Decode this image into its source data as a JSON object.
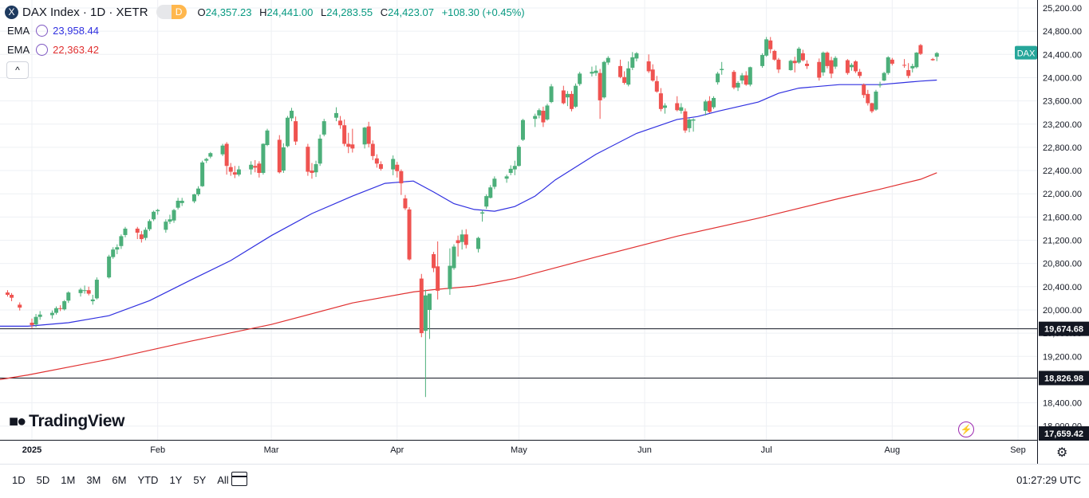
{
  "header": {
    "logo_letter": "X",
    "symbol_title": "DAX Index · 1D · XETR",
    "pill_left": "",
    "pill_right": "D",
    "o_label": "O",
    "o_value": "24,357.23",
    "h_label": "H",
    "h_value": "24,441.00",
    "l_label": "L",
    "l_value": "24,283.55",
    "c_label": "C",
    "c_value": "24,423.07",
    "change": "+108.30 (+0.45%)"
  },
  "ema1": {
    "label": "EMA",
    "value": "23,958.44",
    "color": "#3030e0"
  },
  "ema2": {
    "label": "EMA",
    "value": "22,363.42",
    "color": "#e03030"
  },
  "collapse_label": "^",
  "logo_text": "TradingView",
  "colors": {
    "up": "#26a69a",
    "upFill": "#4caf50",
    "down": "#ef5350",
    "grid": "#eef0f4",
    "axis": "#e0e3eb"
  },
  "chart_data": {
    "type": "candlestick",
    "title": "DAX Index · 1D · XETR",
    "price_axis": {
      "min": 17659.42,
      "max": 25200,
      "ticks": [
        25200,
        24800,
        24400,
        24000,
        23600,
        23200,
        22800,
        22400,
        22000,
        21600,
        21200,
        20800,
        20400,
        20000,
        19600,
        19200,
        18800,
        18400,
        18000
      ],
      "tick_labels": [
        "25,200.00",
        "24,800.00",
        "24,400.00",
        "24,000.00",
        "23,600.00",
        "23,200.00",
        "22,800.00",
        "22,400.00",
        "22,000.00",
        "21,600.00",
        "21,200.00",
        "20,800.00",
        "20,400.00",
        "20,000.00",
        "19,600.00",
        "19,200.00",
        "18,800.00",
        "18,400.00",
        "18,000.00"
      ]
    },
    "time_axis": {
      "labels": [
        "2025",
        "Feb",
        "Mar",
        "Apr",
        "May",
        "Jun",
        "Jul",
        "Aug",
        "Sep"
      ],
      "label_days": [
        1,
        32,
        60,
        91,
        121,
        152,
        182,
        213,
        244
      ]
    },
    "hlines": [
      {
        "value": 19674.68,
        "label": "19,674.68"
      },
      {
        "value": 18826.98,
        "label": "18,826.98"
      }
    ],
    "bottom_label": "17,659.42",
    "last_price_badge": "DAX",
    "candles_note": "day index (1 = Jan 1, 2025) with open, high, low, close",
    "candles": [
      [
        -5,
        20300,
        20340,
        20230,
        20260
      ],
      [
        -4,
        20260,
        20290,
        20150,
        20210
      ],
      [
        -2,
        20090,
        20130,
        19990,
        20040
      ],
      [
        1,
        19780,
        19850,
        19680,
        19740
      ],
      [
        2,
        19750,
        19930,
        19700,
        19880
      ],
      [
        3,
        19880,
        19980,
        19830,
        19920
      ],
      [
        6,
        19910,
        19990,
        19850,
        19950
      ],
      [
        7,
        19950,
        20060,
        19920,
        20030
      ],
      [
        8,
        20030,
        20080,
        19980,
        20020
      ],
      [
        9,
        20010,
        20170,
        19990,
        20150
      ],
      [
        10,
        20160,
        20320,
        20120,
        20300
      ],
      [
        13,
        20290,
        20380,
        20230,
        20350
      ],
      [
        14,
        20330,
        20420,
        20280,
        20340
      ],
      [
        15,
        20340,
        20400,
        20250,
        20280
      ],
      [
        16,
        20150,
        20260,
        20090,
        20180
      ],
      [
        17,
        20200,
        20560,
        20180,
        20520
      ],
      [
        20,
        20560,
        20950,
        20540,
        20920
      ],
      [
        21,
        20910,
        21080,
        20880,
        21040
      ],
      [
        22,
        21040,
        21130,
        20960,
        21080
      ],
      [
        23,
        21100,
        21300,
        21050,
        21270
      ],
      [
        24,
        21290,
        21430,
        21250,
        21400
      ],
      [
        27,
        21400,
        21430,
        21220,
        21330
      ],
      [
        28,
        21300,
        21360,
        21160,
        21220
      ],
      [
        29,
        21240,
        21420,
        21200,
        21380
      ],
      [
        30,
        21390,
        21560,
        21360,
        21530
      ],
      [
        31,
        21560,
        21710,
        21530,
        21690
      ],
      [
        32,
        21700,
        21740,
        21640,
        21720
      ],
      [
        34,
        21380,
        21560,
        21330,
        21520
      ],
      [
        35,
        21520,
        21640,
        21480,
        21560
      ],
      [
        36,
        21540,
        21740,
        21500,
        21720
      ],
      [
        37,
        21760,
        21930,
        21730,
        21880
      ],
      [
        38,
        21840,
        21930,
        21790,
        21880
      ],
      [
        41,
        21870,
        22000,
        21840,
        21990
      ],
      [
        42,
        21990,
        22130,
        21960,
        22090
      ],
      [
        43,
        22130,
        22570,
        22120,
        22540
      ],
      [
        44,
        22570,
        22620,
        22530,
        22600
      ],
      [
        45,
        22640,
        22720,
        22610,
        22700
      ],
      [
        48,
        22680,
        22860,
        22650,
        22830
      ],
      [
        49,
        22860,
        22890,
        22330,
        22480
      ],
      [
        50,
        22460,
        22530,
        22310,
        22380
      ],
      [
        51,
        22370,
        22480,
        22270,
        22330
      ],
      [
        52,
        22330,
        22480,
        22300,
        22420
      ],
      [
        55,
        22420,
        22560,
        22330,
        22500
      ],
      [
        56,
        22480,
        22580,
        22370,
        22450
      ],
      [
        57,
        22520,
        22560,
        22280,
        22360
      ],
      [
        58,
        22360,
        22870,
        22330,
        22860
      ],
      [
        59,
        22840,
        23120,
        22820,
        23090
      ],
      [
        62,
        22930,
        23010,
        22350,
        22370
      ],
      [
        63,
        22400,
        22870,
        22360,
        22800
      ],
      [
        64,
        22820,
        23340,
        22800,
        23310
      ],
      [
        65,
        23300,
        23480,
        23250,
        23430
      ],
      [
        66,
        23250,
        23330,
        22840,
        22900
      ],
      [
        69,
        22810,
        22860,
        22310,
        22380
      ],
      [
        70,
        22400,
        22530,
        22260,
        22360
      ],
      [
        71,
        22370,
        22570,
        22290,
        22510
      ],
      [
        72,
        22520,
        23020,
        22480,
        22950
      ],
      [
        73,
        23020,
        23290,
        22990,
        23250
      ],
      [
        76,
        23310,
        23490,
        23250,
        23390
      ],
      [
        77,
        23260,
        23340,
        23120,
        23180
      ],
      [
        78,
        23180,
        23280,
        22820,
        22860
      ],
      [
        79,
        22860,
        23050,
        22700,
        22810
      ],
      [
        80,
        22850,
        23120,
        22710,
        22780
      ],
      [
        83,
        22850,
        23150,
        22780,
        23140
      ],
      [
        84,
        23160,
        23240,
        22800,
        22860
      ],
      [
        85,
        22860,
        22920,
        22580,
        22650
      ],
      [
        86,
        22610,
        22680,
        22450,
        22520
      ],
      [
        87,
        22510,
        22560,
        22400,
        22430
      ],
      [
        90,
        22420,
        22660,
        22320,
        22600
      ],
      [
        91,
        22500,
        22550,
        22280,
        22390
      ],
      [
        92,
        22390,
        22420,
        21980,
        22180
      ],
      [
        93,
        21920,
        21980,
        21720,
        21750
      ],
      [
        94,
        21730,
        21770,
        20850,
        20870
      ],
      [
        97,
        20540,
        20620,
        19530,
        19600
      ],
      [
        98,
        19640,
        20350,
        18500,
        20250
      ],
      [
        99,
        20000,
        20280,
        19500,
        20280
      ],
      [
        100,
        20960,
        21000,
        20650,
        20720
      ],
      [
        101,
        20750,
        21180,
        20180,
        20330
      ],
      [
        104,
        20360,
        21060,
        20260,
        20760
      ],
      [
        105,
        20720,
        21130,
        20690,
        21090
      ],
      [
        106,
        21200,
        21280,
        20920,
        21150
      ],
      [
        107,
        21170,
        21380,
        21040,
        21300
      ],
      [
        108,
        21300,
        21390,
        21060,
        21120
      ],
      [
        111,
        21050,
        21260,
        20990,
        21240
      ],
      [
        112,
        21660,
        21720,
        21520,
        21680
      ],
      [
        113,
        21780,
        21990,
        21740,
        21960
      ],
      [
        114,
        21930,
        22150,
        21920,
        22110
      ],
      [
        115,
        22120,
        22300,
        22080,
        22260
      ],
      [
        118,
        22260,
        22330,
        22190,
        22300
      ],
      [
        119,
        22360,
        22490,
        22320,
        22430
      ],
      [
        120,
        22420,
        22570,
        22320,
        22480
      ],
      [
        121,
        22480,
        22840,
        22470,
        22810
      ],
      [
        122,
        22930,
        23290,
        22910,
        23270
      ],
      [
        125,
        23290,
        23380,
        23150,
        23340
      ],
      [
        126,
        23350,
        23470,
        23300,
        23440
      ],
      [
        127,
        23430,
        23500,
        23150,
        23230
      ],
      [
        128,
        23280,
        23550,
        23260,
        23520
      ],
      [
        129,
        23580,
        23890,
        23560,
        23850
      ],
      [
        132,
        23780,
        23860,
        23540,
        23560
      ],
      [
        133,
        23660,
        23770,
        23510,
        23720
      ],
      [
        134,
        23720,
        23770,
        23420,
        23460
      ],
      [
        135,
        23500,
        23900,
        23480,
        23860
      ],
      [
        136,
        23890,
        24100,
        23860,
        24070
      ],
      [
        139,
        24070,
        24190,
        24020,
        24100
      ],
      [
        140,
        24080,
        24210,
        24030,
        24120
      ],
      [
        141,
        24080,
        24150,
        23290,
        23610
      ],
      [
        142,
        23660,
        24290,
        23640,
        24270
      ],
      [
        143,
        24260,
        24370,
        24220,
        24340
      ],
      [
        146,
        24200,
        24310,
        23990,
        24010
      ],
      [
        147,
        24010,
        24110,
        23880,
        23910
      ],
      [
        148,
        23880,
        24280,
        23850,
        24160
      ],
      [
        149,
        24170,
        24440,
        24130,
        24350
      ],
      [
        150,
        24330,
        24440,
        24280,
        24420
      ],
      [
        153,
        24280,
        24400,
        24080,
        24110
      ],
      [
        154,
        24140,
        24230,
        23930,
        23950
      ],
      [
        155,
        23940,
        24030,
        23740,
        23760
      ],
      [
        156,
        23730,
        23820,
        23420,
        23460
      ],
      [
        157,
        23480,
        23560,
        23380,
        23520
      ],
      [
        160,
        23560,
        23680,
        23420,
        23440
      ],
      [
        161,
        23430,
        23560,
        23380,
        23490
      ],
      [
        162,
        23420,
        23470,
        23050,
        23090
      ],
      [
        163,
        23130,
        23300,
        23060,
        23280
      ],
      [
        164,
        23260,
        23300,
        23070,
        23280
      ],
      [
        167,
        23430,
        23620,
        23350,
        23590
      ],
      [
        168,
        23600,
        23680,
        23390,
        23410
      ],
      [
        169,
        23490,
        23680,
        23460,
        23650
      ],
      [
        170,
        23920,
        24100,
        23880,
        24070
      ],
      [
        171,
        24130,
        24270,
        24050,
        24150
      ],
      [
        174,
        24100,
        24130,
        23800,
        23830
      ],
      [
        175,
        23830,
        23940,
        23770,
        23910
      ],
      [
        176,
        23950,
        24080,
        23890,
        24040
      ],
      [
        177,
        24040,
        24110,
        23860,
        23880
      ],
      [
        178,
        23880,
        24190,
        23850,
        24180
      ],
      [
        181,
        24200,
        24420,
        24170,
        24390
      ],
      [
        182,
        24380,
        24700,
        24360,
        24660
      ],
      [
        183,
        24640,
        24700,
        24420,
        24490
      ],
      [
        184,
        24460,
        24480,
        24290,
        24310
      ],
      [
        185,
        24310,
        24340,
        24080,
        24140
      ],
      [
        188,
        24130,
        24310,
        24120,
        24290
      ],
      [
        189,
        24290,
        24360,
        24090,
        24250
      ],
      [
        190,
        24260,
        24530,
        24240,
        24500
      ],
      [
        191,
        24420,
        24480,
        24280,
        24300
      ],
      [
        192,
        24240,
        24300,
        24150,
        24200
      ],
      [
        195,
        24270,
        24330,
        23950,
        24000
      ],
      [
        196,
        24090,
        24450,
        24030,
        24430
      ],
      [
        197,
        24430,
        24450,
        24160,
        24200
      ],
      [
        198,
        24300,
        24360,
        23990,
        24070
      ],
      [
        199,
        24190,
        24370,
        24150,
        24340
      ],
      [
        202,
        24300,
        24320,
        24050,
        24080
      ],
      [
        203,
        24180,
        24250,
        24120,
        24220
      ],
      [
        204,
        24280,
        24300,
        24080,
        24110
      ],
      [
        205,
        24100,
        24150,
        23990,
        24030
      ],
      [
        206,
        23880,
        23900,
        23650,
        23700
      ],
      [
        207,
        23720,
        23790,
        23520,
        23560
      ],
      [
        208,
        23560,
        23570,
        23390,
        23420
      ],
      [
        209,
        23450,
        23790,
        23430,
        23760
      ],
      [
        210,
        23880,
        23930,
        23830,
        23880
      ],
      [
        211,
        23950,
        24100,
        23940,
        24080
      ],
      [
        212,
        24080,
        24370,
        24050,
        24350
      ],
      [
        213,
        24310,
        24340,
        24210,
        24240
      ],
      [
        216,
        24220,
        24320,
        24170,
        24210
      ],
      [
        217,
        24130,
        24250,
        23990,
        24030
      ],
      [
        218,
        24160,
        24240,
        24090,
        24200
      ],
      [
        219,
        24180,
        24440,
        24160,
        24430
      ],
      [
        220,
        24560,
        24580,
        24390,
        24410
      ],
      [
        223,
        24320,
        24340,
        24290,
        24300
      ],
      [
        224,
        24360,
        24441,
        24284,
        24423
      ]
    ],
    "ema_fast": {
      "label": "EMA",
      "value": 23958.44,
      "points": [
        [
          -7,
          19720
        ],
        [
          0,
          19720
        ],
        [
          10,
          19780
        ],
        [
          20,
          19900
        ],
        [
          30,
          20160
        ],
        [
          40,
          20510
        ],
        [
          50,
          20850
        ],
        [
          60,
          21280
        ],
        [
          70,
          21660
        ],
        [
          80,
          21960
        ],
        [
          88,
          22180
        ],
        [
          95,
          22220
        ],
        [
          100,
          22030
        ],
        [
          105,
          21830
        ],
        [
          110,
          21730
        ],
        [
          115,
          21700
        ],
        [
          120,
          21780
        ],
        [
          125,
          21960
        ],
        [
          130,
          22240
        ],
        [
          140,
          22680
        ],
        [
          150,
          23040
        ],
        [
          160,
          23280
        ],
        [
          165,
          23330
        ],
        [
          170,
          23420
        ],
        [
          180,
          23580
        ],
        [
          185,
          23730
        ],
        [
          190,
          23820
        ],
        [
          200,
          23880
        ],
        [
          210,
          23880
        ],
        [
          215,
          23910
        ],
        [
          220,
          23940
        ],
        [
          224,
          23958
        ]
      ]
    },
    "ema_slow": {
      "label": "EMA",
      "value": 22363.42,
      "points": [
        [
          -7,
          18800
        ],
        [
          0,
          18880
        ],
        [
          20,
          19150
        ],
        [
          40,
          19460
        ],
        [
          60,
          19750
        ],
        [
          80,
          20120
        ],
        [
          95,
          20310
        ],
        [
          100,
          20350
        ],
        [
          110,
          20410
        ],
        [
          120,
          20540
        ],
        [
          140,
          20910
        ],
        [
          160,
          21270
        ],
        [
          180,
          21580
        ],
        [
          200,
          21920
        ],
        [
          210,
          22080
        ],
        [
          220,
          22250
        ],
        [
          224,
          22363
        ]
      ]
    }
  },
  "bottom": {
    "ranges": [
      "1D",
      "5D",
      "1M",
      "3M",
      "6M",
      "YTD",
      "1Y",
      "5Y",
      "All"
    ],
    "time": "01:27:29 UTC"
  }
}
